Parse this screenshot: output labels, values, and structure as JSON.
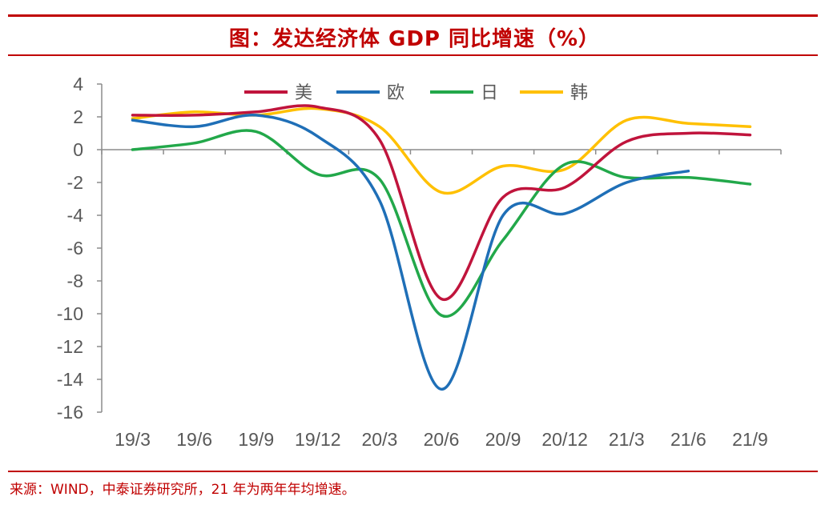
{
  "header": {
    "title": "图：发达经济体 GDP 同比增速（%）"
  },
  "footer": {
    "source": "来源：WIND，中泰证券研究所，21 年为两年年均增速。"
  },
  "chart_data": {
    "type": "line",
    "title": "图：发达经济体 GDP 同比增速（%）",
    "xlabel": "",
    "ylabel": "",
    "categories": [
      "19/3",
      "19/6",
      "19/9",
      "19/12",
      "20/3",
      "20/6",
      "20/9",
      "20/12",
      "21/3",
      "21/6",
      "21/9"
    ],
    "ylim": [
      -16,
      4
    ],
    "yticks": [
      4,
      2,
      0,
      -2,
      -4,
      -6,
      -8,
      -10,
      -12,
      -14,
      -16
    ],
    "grid": false,
    "legend_position": "top",
    "series": [
      {
        "name": "美",
        "color": "#c0143c",
        "values": [
          2.1,
          2.1,
          2.3,
          2.6,
          0.6,
          -9.1,
          -2.9,
          -2.3,
          0.5,
          1.0,
          0.9
        ]
      },
      {
        "name": "欧",
        "color": "#1f6fb7",
        "values": [
          1.8,
          1.4,
          2.1,
          0.8,
          -3.1,
          -14.6,
          -4.0,
          -3.9,
          -2.0,
          -1.3,
          null
        ]
      },
      {
        "name": "日",
        "color": "#22a84a",
        "values": [
          0.0,
          0.4,
          1.1,
          -1.5,
          -1.8,
          -10.1,
          -5.5,
          -0.9,
          -1.7,
          -1.7,
          -2.1
        ]
      },
      {
        "name": "韩",
        "color": "#ffc000",
        "values": [
          1.9,
          2.3,
          2.1,
          2.5,
          1.4,
          -2.6,
          -1.0,
          -1.2,
          1.8,
          1.6,
          1.4
        ]
      }
    ]
  }
}
